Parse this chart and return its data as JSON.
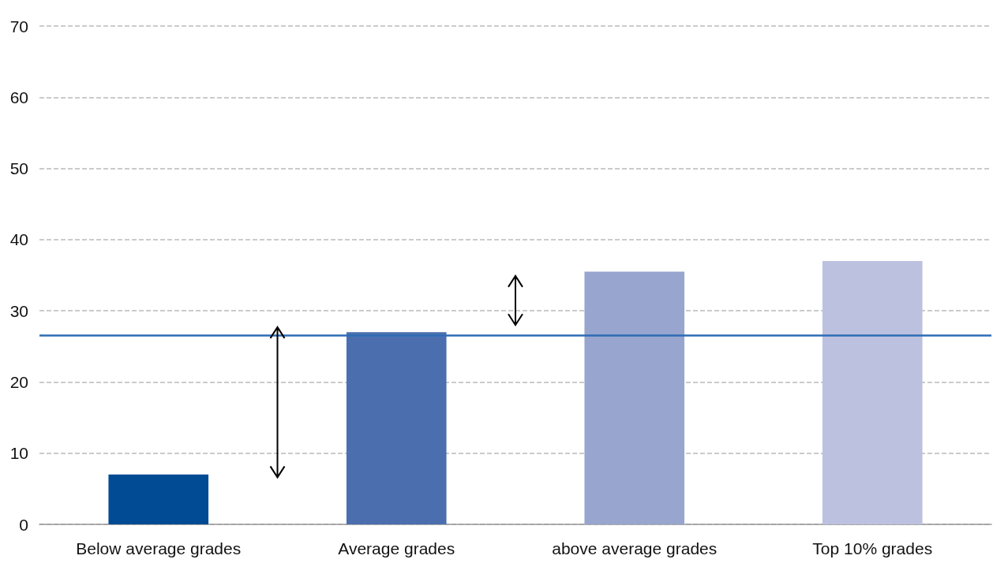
{
  "chart_data": {
    "type": "bar",
    "categories": [
      "Below average grades",
      "Average grades",
      "above average grades",
      "Top 10% grades"
    ],
    "values": [
      7,
      27,
      35.5,
      37
    ],
    "colors": [
      "#004b93",
      "#4b6fae",
      "#98a5cf",
      "#bcc1e0"
    ],
    "ylim": [
      0,
      70
    ],
    "yticks": [
      0,
      10,
      20,
      30,
      40,
      50,
      60,
      70
    ],
    "grid": "y",
    "ref_lines": [
      {
        "axis": "y",
        "value": 26.5,
        "color": "#2e6db4"
      }
    ]
  }
}
